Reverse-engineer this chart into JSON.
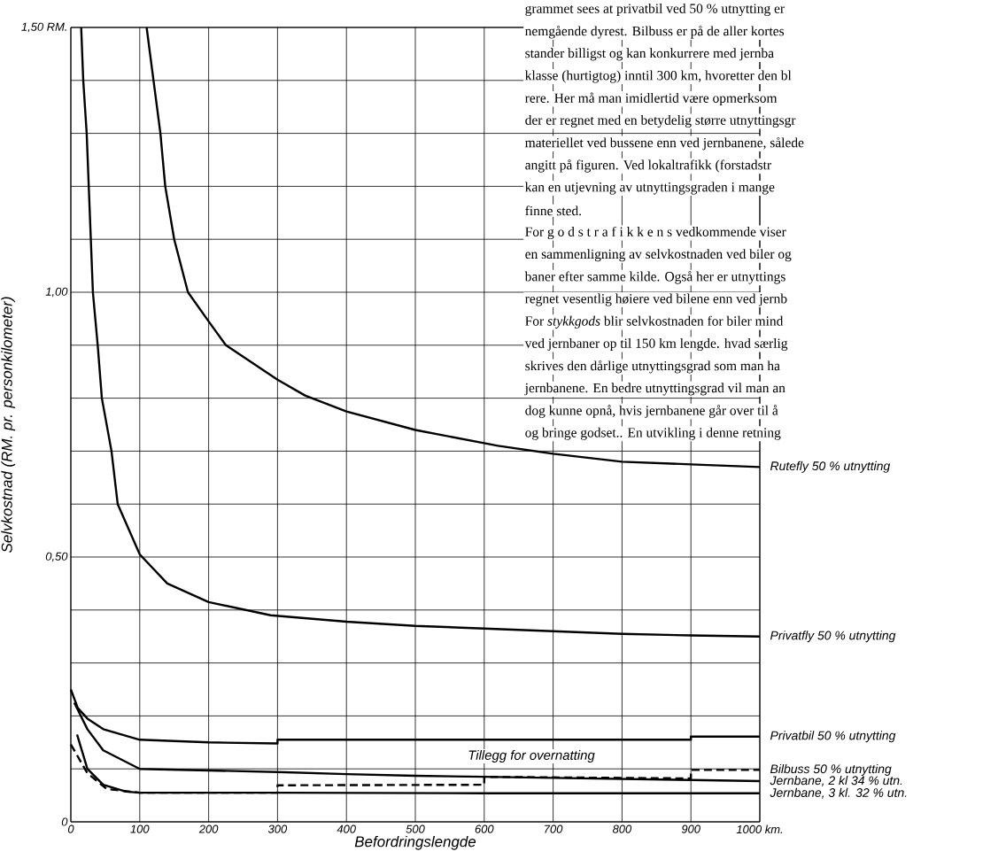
{
  "chart_data": {
    "type": "line",
    "xlabel": "Befordringslengde",
    "ylabel": "Selvkostnad (RM. pr. personkilometer)",
    "xlim": [
      0,
      1000
    ],
    "ylim": [
      0,
      1.5
    ],
    "xticks": [
      0,
      100,
      200,
      300,
      400,
      500,
      600,
      700,
      800,
      900,
      {
        "value": 1000,
        "label": "1000 km."
      }
    ],
    "yticks": [
      0,
      {
        "value": 0.1,
        "label": null
      },
      {
        "value": 0.2,
        "label": null
      },
      {
        "value": 0.3,
        "label": null
      },
      {
        "value": 0.4,
        "label": null
      },
      {
        "value": 0.5,
        "label": "0,50"
      },
      {
        "value": 0.6,
        "label": null
      },
      {
        "value": 0.7,
        "label": null
      },
      {
        "value": 0.8,
        "label": null
      },
      {
        "value": 0.9,
        "label": null
      },
      {
        "value": 1.0,
        "label": "1,00"
      },
      {
        "value": 1.1,
        "label": null
      },
      {
        "value": 1.2,
        "label": null
      },
      {
        "value": 1.3,
        "label": null
      },
      {
        "value": 1.4,
        "label": null
      },
      {
        "value": 1.5,
        "label": "1,50 RM."
      }
    ],
    "grid": true,
    "series": [
      {
        "name": "Rutefly 50 % utnytting",
        "color": "#000000",
        "x": [
          110,
          120,
          130,
          137,
          150,
          170,
          200,
          225,
          300,
          340,
          400,
          500,
          620,
          700,
          800,
          900,
          1000
        ],
        "values": [
          1.5,
          1.4,
          1.3,
          1.2,
          1.1,
          1.0,
          0.945,
          0.9,
          0.835,
          0.805,
          0.775,
          0.74,
          0.71,
          0.695,
          0.68,
          0.675,
          0.67
        ]
      },
      {
        "name": "Privatfly 50 % utnytting",
        "color": "#000000",
        "x": [
          15,
          18,
          23,
          26,
          29,
          32,
          39,
          45,
          59,
          68,
          100,
          140,
          200,
          290,
          400,
          500,
          600,
          700,
          800,
          900,
          1000
        ],
        "values": [
          1.5,
          1.4,
          1.3,
          1.2,
          1.1,
          1.0,
          0.9,
          0.8,
          0.7,
          0.6,
          0.505,
          0.45,
          0.415,
          0.39,
          0.378,
          0.37,
          0.365,
          0.36,
          0.355,
          0.352,
          0.35
        ]
      },
      {
        "name": "Privatbil 50 % utnytting",
        "color": "#000000",
        "x": [
          0,
          10,
          24,
          47,
          100,
          200,
          300,
          300,
          600,
          900,
          900,
          1000
        ],
        "values": [
          0.25,
          0.215,
          0.195,
          0.175,
          0.155,
          0.15,
          0.148,
          0.155,
          0.155,
          0.155,
          0.161,
          0.161
        ]
      },
      {
        "name": "Bilbuss 50 % utnytting",
        "color": "#000000",
        "line_style": "dashed",
        "x": [
          0,
          24,
          52,
          100,
          300,
          300,
          600,
          600,
          900,
          900,
          1000
        ],
        "values": [
          0.146,
          0.092,
          0.062,
          0.055,
          0.055,
          0.069,
          0.07,
          0.085,
          0.082,
          0.098,
          0.098
        ]
      },
      {
        "name": "Jernbane, 2 kl 34 % utn.",
        "color": "#000000",
        "x": [
          5,
          24,
          47,
          100,
          200,
          300,
          400,
          500,
          600,
          700,
          800,
          900,
          1000
        ],
        "values": [
          0.225,
          0.175,
          0.135,
          0.1,
          0.097,
          0.094,
          0.09,
          0.087,
          0.085,
          0.083,
          0.081,
          0.079,
          0.077
        ]
      },
      {
        "name": "Jernbane, 3 kl. 32 % utn.",
        "color": "#000000",
        "x": [
          9,
          24,
          47,
          80,
          100,
          300,
          600,
          1000
        ],
        "values": [
          0.165,
          0.1,
          0.07,
          0.057,
          0.055,
          0.055,
          0.054,
          0.054
        ]
      }
    ],
    "annotations": [
      "Tillegg for overnatting",
      "grammet sees at privatbil ved 50 % utnytting er",
      "nemgående dyrest. Bilbuss er på de aller kortes",
      "stander billigst og kan konkurrere med jernba",
      "klasse (hurtigtog) inntil 300 km, hvoretter den bl",
      "rere. Her må man imidlertid være opmerksom",
      "der er regnet med en betydelig større utnyttingsgr",
      "materiellet ved bussene enn ved jernbanene, sålede",
      "angitt på figuren. Ved lokaltrafikk (forstadstr",
      "kan en utjevning av utnyttingsgraden i mange",
      "finne sted.",
      "For g o d s t r a f i k k e n s vedkommende viser",
      "en sammenligning av selvkostnaden ved biler og",
      "baner efter samme kilde. Også her er utnyttings",
      "regnet vesentlig høiere ved bilene enn ved jernb",
      "For *stykkgods* blir selvkostnaden for biler mind",
      "ved jernbaner op til 150 km lengde. hvad særlig",
      "skrives den dårlige utnyttingsgrad som man ha",
      "jernbanene. En bedre utnyttingsgrad vil man an",
      "dog kunne opnå, hvis jernbanene går over til å",
      "og bringe godset.. En utvikling i denne retning"
    ]
  }
}
